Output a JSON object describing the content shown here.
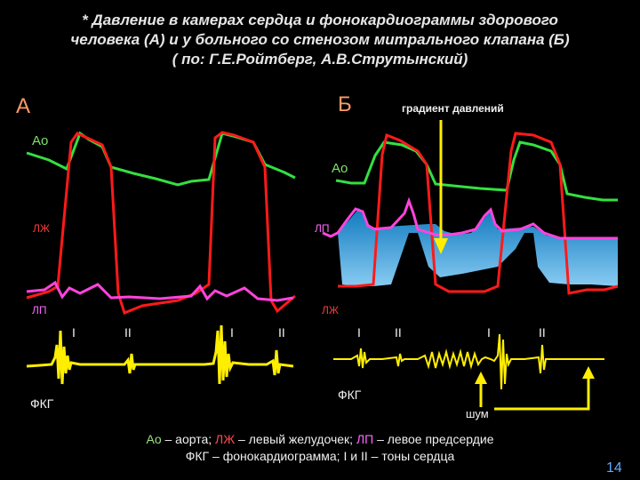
{
  "title": {
    "line1": "* Давление в камерах сердца и фонокардиограммы здорового",
    "line2": "человека (А) и у больного со стенозом митрального клапана (Б)",
    "line3": "( по: Г.Е.Ройтберг, А.В.Струтынский)"
  },
  "panel_a": {
    "letter": "А",
    "ao": "Ао",
    "lv": "ЛЖ",
    "la": "ЛП",
    "fkg": "ФКГ",
    "tones": [
      "I",
      "II",
      "I",
      "II"
    ]
  },
  "panel_b": {
    "letter": "Б",
    "ao": "Ао",
    "la": "ЛП",
    "lv": "ЛЖ",
    "fkg": "ФКГ",
    "gradient": "градиент давлений",
    "noise": "шум",
    "tones": [
      "I",
      "II",
      "I",
      "II"
    ]
  },
  "legend": {
    "l1_ao": "Ао",
    "l1_ao_text": " – аорта; ",
    "l1_lv": "ЛЖ",
    "l1_lv_text": " – левый желудочек; ",
    "l1_la": "ЛП",
    "l1_la_text": " – левое предсердие",
    "l2_fkg": "ФКГ",
    "l2_fkg_text": " – фонокардиограмма; ",
    "l2_i": "I",
    "l2_and": " и ",
    "l2_ii": "II",
    "l2_tones": " – тоны сердца"
  },
  "page_number": "14",
  "colors": {
    "background": "#000000",
    "aorta": "#33e040",
    "left_ventricle": "#ff1a1a",
    "left_atrium": "#ff44dd",
    "fkg": "#ffee00",
    "gradient_fill": "#1e9bd8",
    "arrow": "#ffee00",
    "panel_letter": "#ff9a66"
  }
}
